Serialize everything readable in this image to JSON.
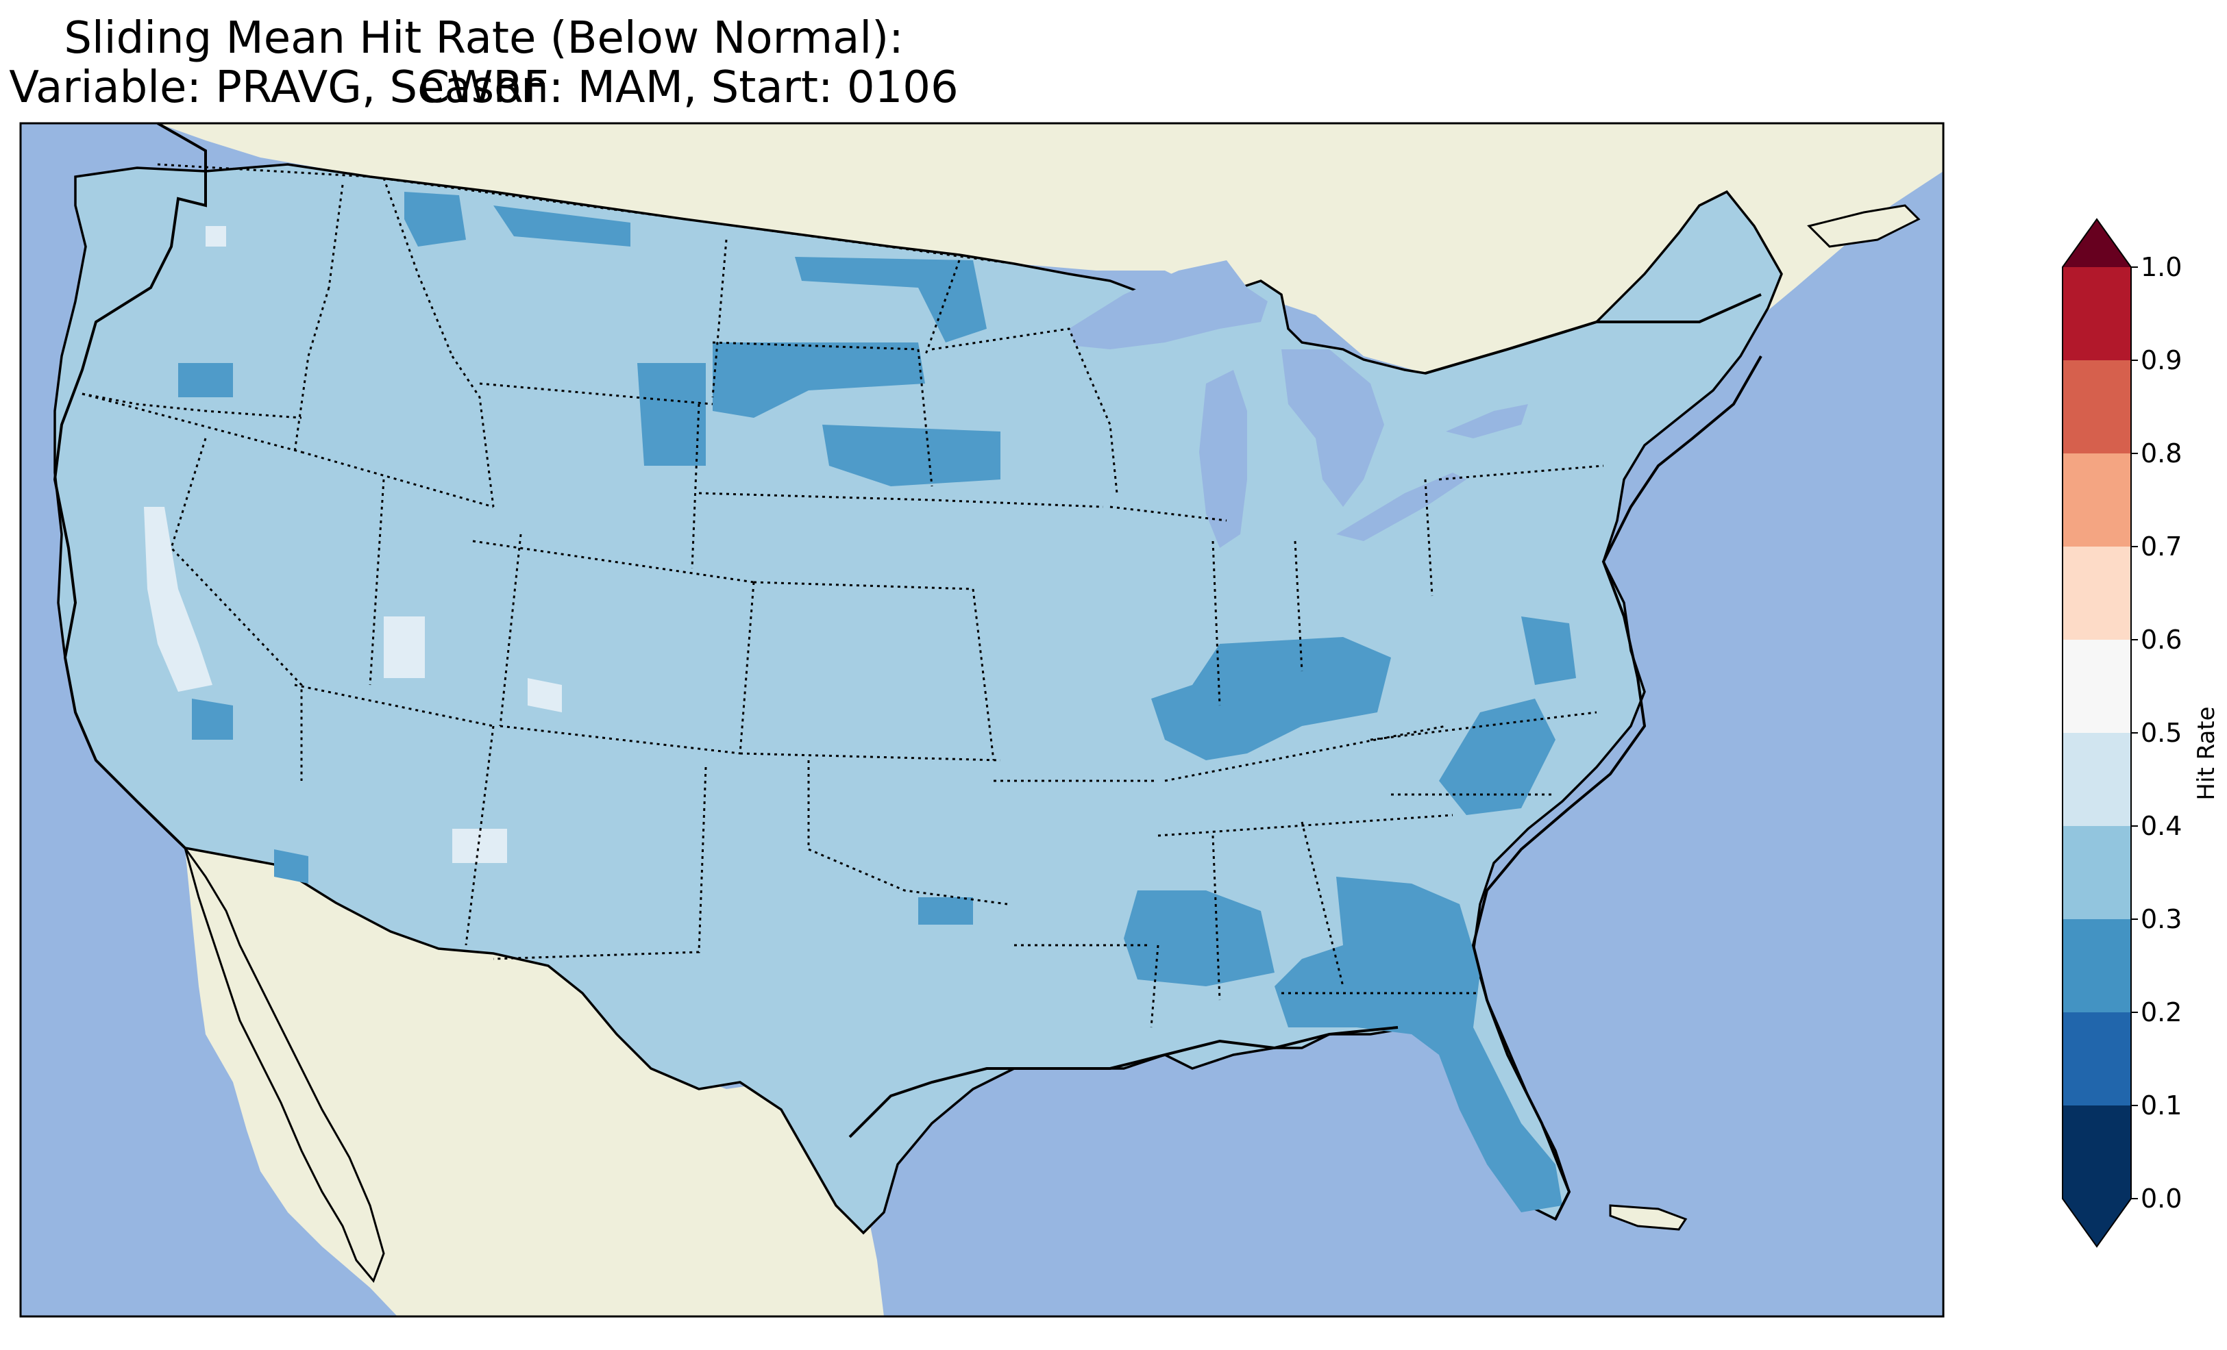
{
  "title": {
    "line1": "Sliding Mean Hit Rate (Below Normal): CWRF",
    "line2": "Variable: PRAVG, Season: MAM, Start: 0106"
  },
  "colorbar": {
    "label": "Hit Rate",
    "ticks": [
      "0.0",
      "0.1",
      "0.2",
      "0.3",
      "0.4",
      "0.5",
      "0.6",
      "0.7",
      "0.8",
      "0.9",
      "1.0"
    ],
    "bins": [
      {
        "range": "0.0-0.1",
        "color": "#053061"
      },
      {
        "range": "0.1-0.2",
        "color": "#2166ac"
      },
      {
        "range": "0.2-0.3",
        "color": "#4393c3"
      },
      {
        "range": "0.3-0.4",
        "color": "#92c5de"
      },
      {
        "range": "0.4-0.5",
        "color": "#d1e5f0"
      },
      {
        "range": "0.5-0.6",
        "color": "#f7f7f7"
      },
      {
        "range": "0.6-0.7",
        "color": "#fddbc7"
      },
      {
        "range": "0.7-0.8",
        "color": "#f4a582"
      },
      {
        "range": "0.8-0.9",
        "color": "#d6604d"
      },
      {
        "range": "0.9-1.0",
        "color": "#b2182b"
      }
    ],
    "under_color": "#053061",
    "over_color": "#67001f"
  },
  "map": {
    "ocean_color": "#97b6e1",
    "land_color": "#efefdb",
    "field_base_color": "#a6cee3",
    "field_low_color": "#4f9bc9",
    "field_high_color": "#e1edf5",
    "dominant_value_range": "0.3-0.4"
  }
}
